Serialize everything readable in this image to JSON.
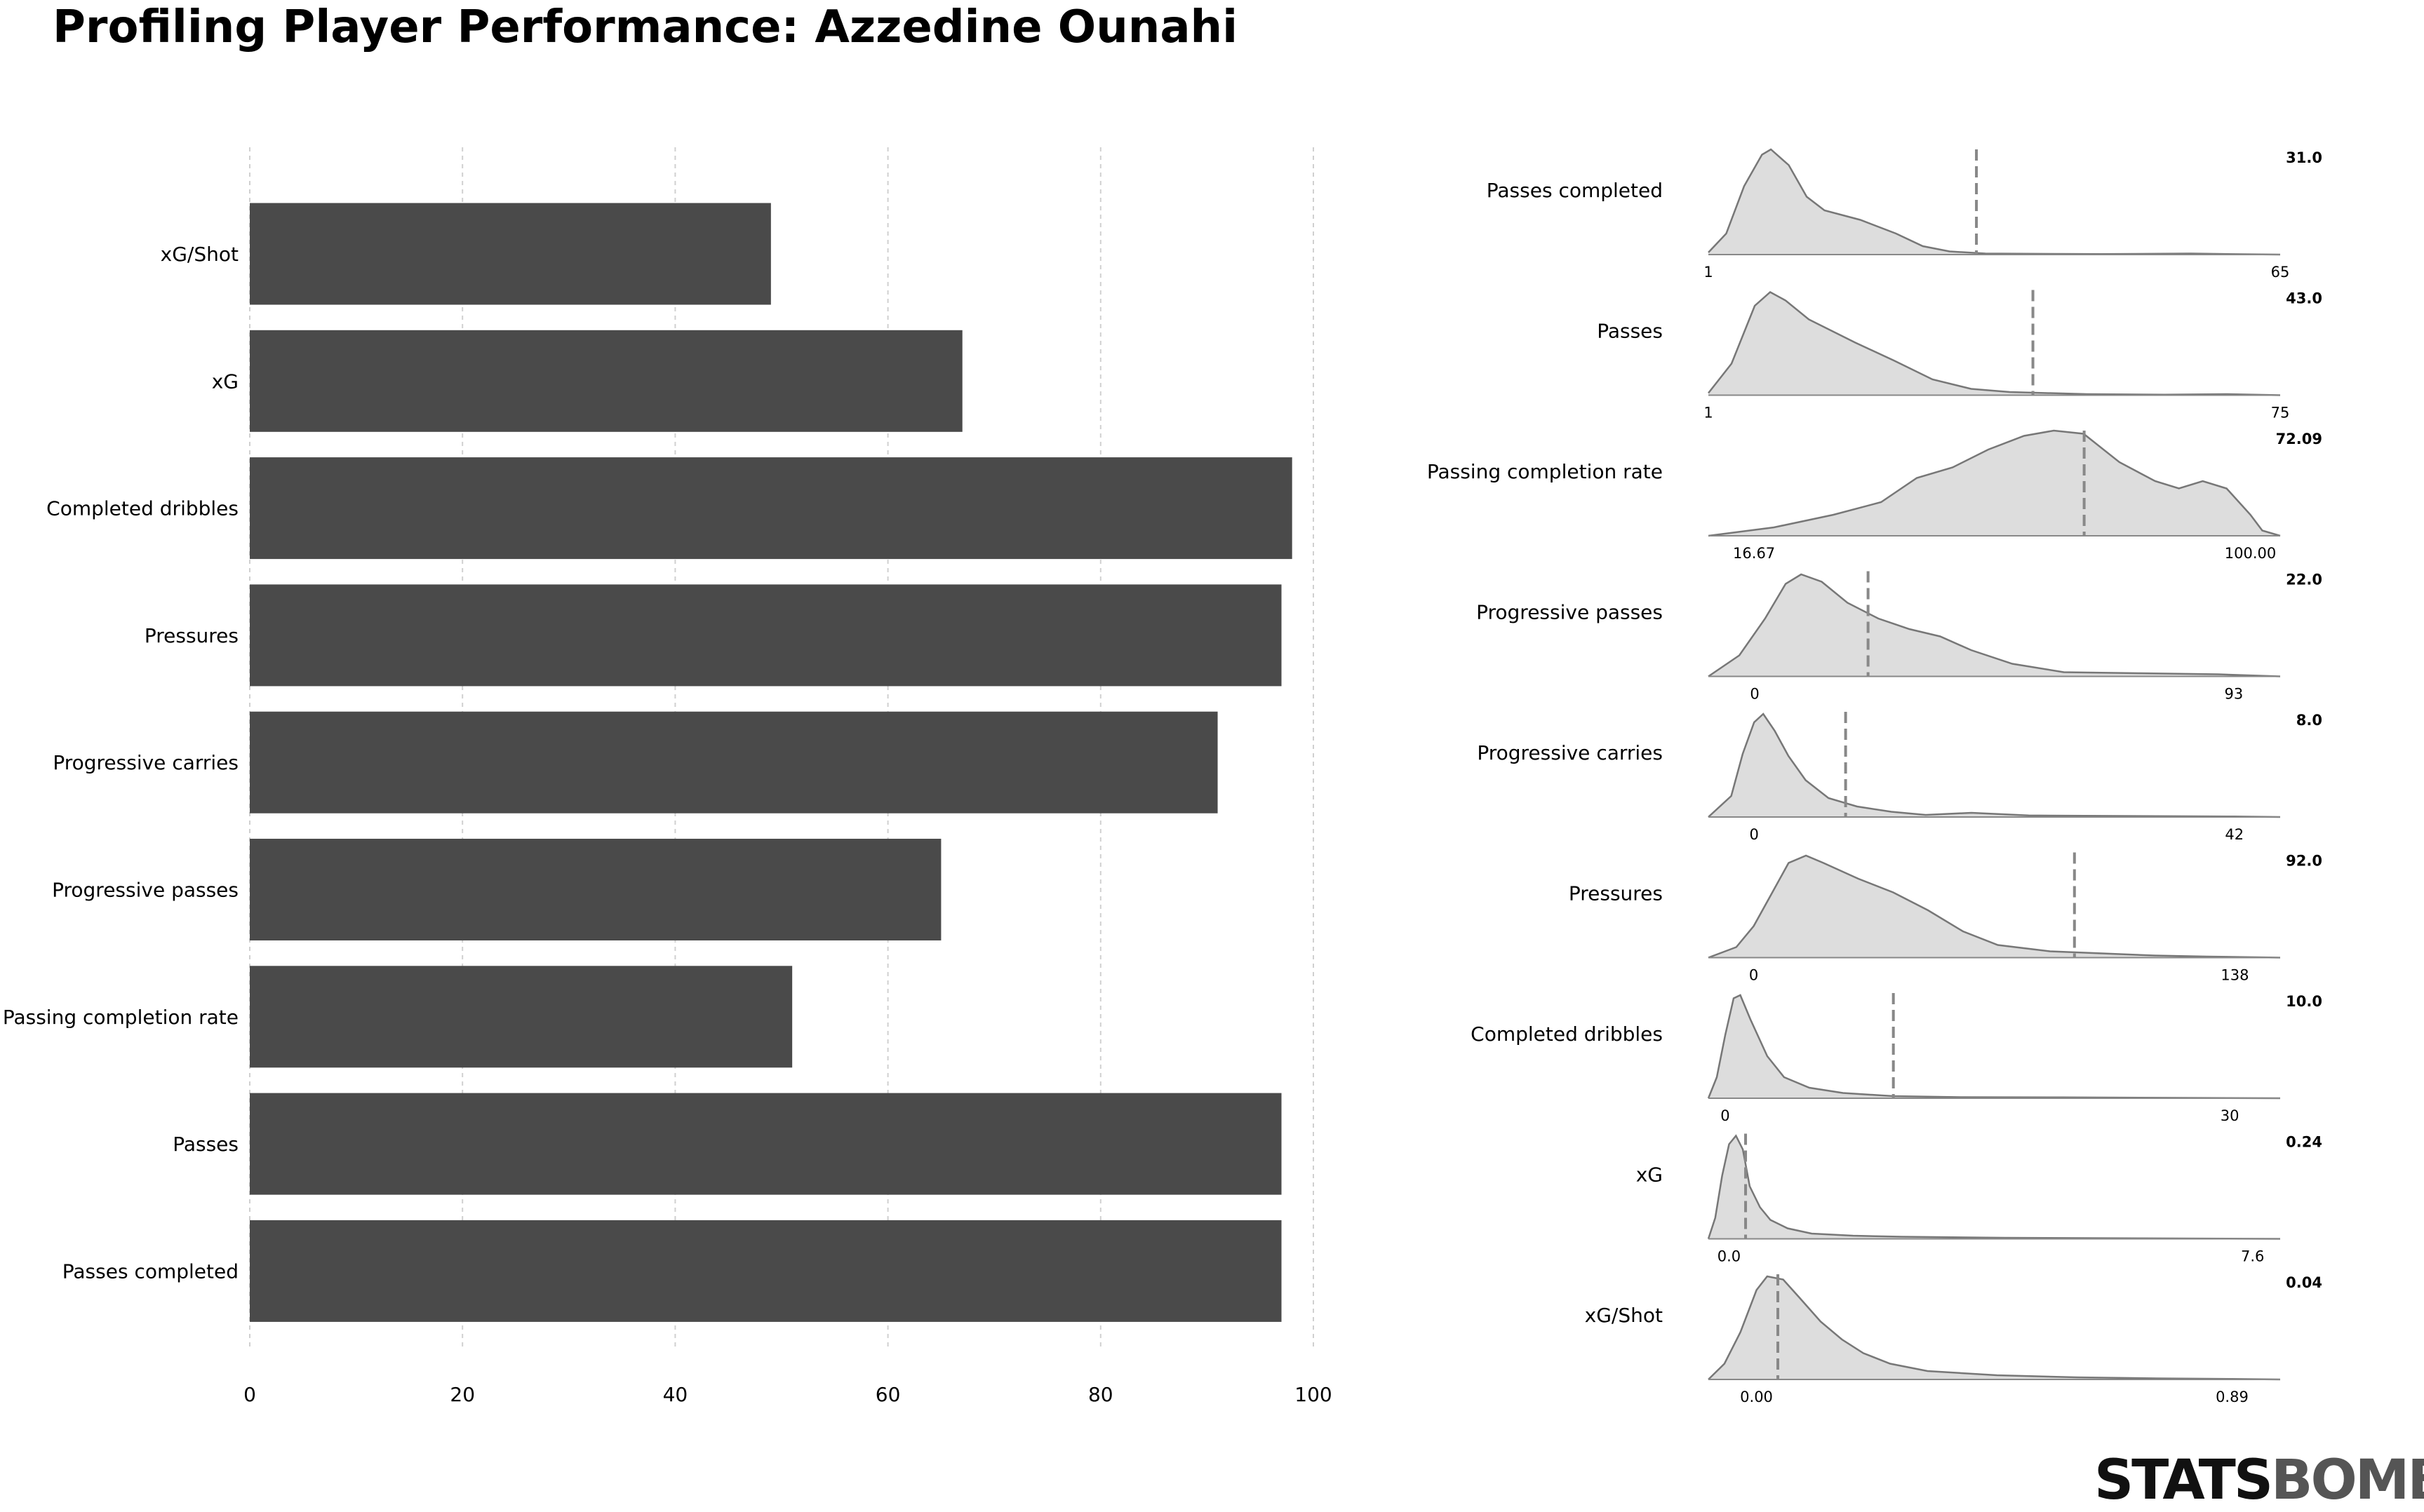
{
  "title": "Profiling Player Performance: Azzedine Ounahi",
  "logo": {
    "part1": "STATS",
    "part2": "BOMB"
  },
  "chart_data": [
    {
      "type": "bar",
      "orientation": "horizontal",
      "categories": [
        "xG/Shot",
        "xG",
        "Completed dribbles",
        "Pressures",
        "Progressive carries",
        "Progressive passes",
        "Passing completion rate",
        "Passes",
        "Passes completed"
      ],
      "values": [
        49,
        67,
        98,
        97,
        91,
        65,
        51,
        97,
        97
      ],
      "xlim": [
        0,
        100
      ],
      "xticks": [
        0,
        20,
        40,
        60,
        80,
        100
      ],
      "grid": "vertical dashed",
      "bar_color": "#4a4a4a"
    },
    {
      "type": "area",
      "kind": "density distributions",
      "fill_color": "#dddddd",
      "line_color": "#777777",
      "marker_color": "#888888",
      "panels": [
        {
          "label": "Passes completed",
          "min_label": "1",
          "max_label": "65",
          "value_label": "31.0",
          "min": 1,
          "max": 65,
          "value": 31.0,
          "curve": [
            [
              1,
              0.02
            ],
            [
              3,
              0.2
            ],
            [
              5,
              0.65
            ],
            [
              7,
              0.95
            ],
            [
              8,
              1.0
            ],
            [
              10,
              0.85
            ],
            [
              12,
              0.55
            ],
            [
              14,
              0.42
            ],
            [
              18,
              0.33
            ],
            [
              22,
              0.2
            ],
            [
              25,
              0.08
            ],
            [
              28,
              0.03
            ],
            [
              32,
              0.01
            ],
            [
              45,
              0.005
            ],
            [
              55,
              0.01
            ],
            [
              60,
              0.004
            ],
            [
              65,
              0.0
            ]
          ]
        },
        {
          "label": "Passes",
          "min_label": "1",
          "max_label": "75",
          "value_label": "43.0",
          "min": 1,
          "max": 75,
          "value": 43.0,
          "curve": [
            [
              1,
              0.02
            ],
            [
              4,
              0.3
            ],
            [
              7,
              0.85
            ],
            [
              9,
              0.98
            ],
            [
              11,
              0.9
            ],
            [
              14,
              0.72
            ],
            [
              20,
              0.5
            ],
            [
              25,
              0.33
            ],
            [
              30,
              0.15
            ],
            [
              35,
              0.06
            ],
            [
              40,
              0.03
            ],
            [
              50,
              0.01
            ],
            [
              60,
              0.005
            ],
            [
              68,
              0.01
            ],
            [
              75,
              0.0
            ]
          ]
        },
        {
          "label": "Passing completion rate",
          "min_label": "16.67",
          "max_label": "100.00",
          "value_label": "72.09",
          "min": 16.67,
          "max": 100,
          "value": 72.09,
          "curve": [
            [
              9,
              0.0
            ],
            [
              20,
              0.08
            ],
            [
              30,
              0.2
            ],
            [
              38,
              0.32
            ],
            [
              44,
              0.55
            ],
            [
              50,
              0.65
            ],
            [
              56,
              0.82
            ],
            [
              62,
              0.95
            ],
            [
              67,
              1.0
            ],
            [
              72,
              0.97
            ],
            [
              78,
              0.7
            ],
            [
              84,
              0.52
            ],
            [
              88,
              0.45
            ],
            [
              92,
              0.52
            ],
            [
              96,
              0.45
            ],
            [
              100,
              0.2
            ],
            [
              102,
              0.05
            ],
            [
              105,
              0.0
            ]
          ]
        },
        {
          "label": "Progressive passes",
          "min_label": "0",
          "max_label": "93",
          "value_label": "22.0",
          "min": 0,
          "max": 93,
          "value": 22.0,
          "curve": [
            [
              -9,
              0.0
            ],
            [
              -3,
              0.2
            ],
            [
              2,
              0.55
            ],
            [
              6,
              0.88
            ],
            [
              9,
              0.97
            ],
            [
              13,
              0.9
            ],
            [
              18,
              0.7
            ],
            [
              24,
              0.55
            ],
            [
              30,
              0.45
            ],
            [
              36,
              0.38
            ],
            [
              42,
              0.25
            ],
            [
              50,
              0.12
            ],
            [
              60,
              0.04
            ],
            [
              75,
              0.03
            ],
            [
              90,
              0.02
            ],
            [
              102,
              0.0
            ]
          ]
        },
        {
          "label": "Progressive carries",
          "min_label": "0",
          "max_label": "42",
          "value_label": "8.0",
          "min": 0,
          "max": 42,
          "value": 8.0,
          "curve": [
            [
              -4,
              0.0
            ],
            [
              -2,
              0.2
            ],
            [
              -1,
              0.6
            ],
            [
              0,
              0.9
            ],
            [
              0.8,
              0.98
            ],
            [
              1.8,
              0.82
            ],
            [
              3,
              0.58
            ],
            [
              4.5,
              0.35
            ],
            [
              6.5,
              0.18
            ],
            [
              9,
              0.1
            ],
            [
              12,
              0.05
            ],
            [
              15,
              0.02
            ],
            [
              19,
              0.04
            ],
            [
              24,
              0.015
            ],
            [
              32,
              0.01
            ],
            [
              42,
              0.005
            ],
            [
              46,
              0.0
            ]
          ]
        },
        {
          "label": "Pressures",
          "min_label": "0",
          "max_label": "138",
          "value_label": "92.0",
          "min": 0,
          "max": 138,
          "value": 92.0,
          "curve": [
            [
              -13,
              0.0
            ],
            [
              -5,
              0.1
            ],
            [
              0,
              0.3
            ],
            [
              5,
              0.6
            ],
            [
              10,
              0.9
            ],
            [
              15,
              0.97
            ],
            [
              20,
              0.9
            ],
            [
              30,
              0.75
            ],
            [
              40,
              0.62
            ],
            [
              50,
              0.45
            ],
            [
              60,
              0.25
            ],
            [
              70,
              0.12
            ],
            [
              85,
              0.06
            ],
            [
              100,
              0.04
            ],
            [
              115,
              0.02
            ],
            [
              130,
              0.01
            ],
            [
              151,
              0.0
            ]
          ]
        },
        {
          "label": "Completed dribbles",
          "min_label": "0",
          "max_label": "30",
          "value_label": "10.0",
          "min": 0,
          "max": 30,
          "value": 10.0,
          "curve": [
            [
              -1,
              0.0
            ],
            [
              -0.5,
              0.2
            ],
            [
              0,
              0.6
            ],
            [
              0.5,
              0.95
            ],
            [
              0.9,
              0.98
            ],
            [
              1.5,
              0.75
            ],
            [
              2.5,
              0.4
            ],
            [
              3.5,
              0.2
            ],
            [
              5,
              0.1
            ],
            [
              7,
              0.05
            ],
            [
              10,
              0.02
            ],
            [
              14,
              0.01
            ],
            [
              20,
              0.008
            ],
            [
              26,
              0.004
            ],
            [
              33,
              0.0
            ]
          ]
        },
        {
          "label": "xG",
          "min_label": "0.0",
          "max_label": "7.6",
          "value_label": "0.24",
          "min": 0.0,
          "max": 7.6,
          "value": 0.24,
          "curve": [
            [
              -0.3,
              0.0
            ],
            [
              -0.2,
              0.2
            ],
            [
              -0.1,
              0.6
            ],
            [
              0.0,
              0.9
            ],
            [
              0.1,
              0.98
            ],
            [
              0.2,
              0.85
            ],
            [
              0.3,
              0.5
            ],
            [
              0.45,
              0.3
            ],
            [
              0.6,
              0.18
            ],
            [
              0.85,
              0.1
            ],
            [
              1.2,
              0.05
            ],
            [
              1.8,
              0.03
            ],
            [
              2.5,
              0.02
            ],
            [
              4,
              0.01
            ],
            [
              6,
              0.005
            ],
            [
              8,
              0.0
            ]
          ]
        },
        {
          "label": "xG/Shot",
          "min_label": "0.00",
          "max_label": "0.89",
          "value_label": "0.04",
          "min": 0.0,
          "max": 0.89,
          "value": 0.04,
          "curve": [
            [
              -0.09,
              0.0
            ],
            [
              -0.06,
              0.15
            ],
            [
              -0.03,
              0.45
            ],
            [
              0.0,
              0.85
            ],
            [
              0.02,
              0.98
            ],
            [
              0.05,
              0.95
            ],
            [
              0.08,
              0.78
            ],
            [
              0.12,
              0.55
            ],
            [
              0.16,
              0.38
            ],
            [
              0.2,
              0.25
            ],
            [
              0.25,
              0.15
            ],
            [
              0.32,
              0.08
            ],
            [
              0.45,
              0.04
            ],
            [
              0.6,
              0.02
            ],
            [
              0.75,
              0.01
            ],
            [
              0.89,
              0.005
            ],
            [
              0.98,
              0.0
            ]
          ]
        }
      ]
    }
  ]
}
